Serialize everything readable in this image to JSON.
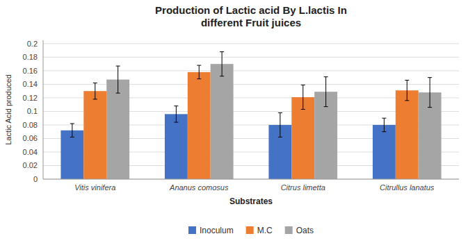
{
  "chart_data": {
    "type": "bar",
    "title": "Production of Lactic acid By L.lactis In\ndifferent Fruit juices",
    "xlabel": "Substrates",
    "ylabel": "Lactic Acid produced",
    "categories": [
      "Vitis vinifera",
      "Ananus comosus",
      "Citrus limetta",
      "Citrullus lanatus"
    ],
    "series": [
      {
        "name": "Inoculum",
        "color": "#4472C4",
        "values": [
          0.072,
          0.096,
          0.08,
          0.08
        ],
        "errors": [
          0.01,
          0.012,
          0.018,
          0.01
        ]
      },
      {
        "name": "M.C",
        "color": "#ED7D31",
        "values": [
          0.13,
          0.158,
          0.121,
          0.131
        ],
        "errors": [
          0.012,
          0.01,
          0.018,
          0.015
        ]
      },
      {
        "name": "Oats",
        "color": "#A5A5A5",
        "values": [
          0.147,
          0.17,
          0.129,
          0.128
        ],
        "errors": [
          0.02,
          0.018,
          0.022,
          0.022
        ]
      }
    ],
    "ylim": [
      0,
      0.205
    ],
    "yticks": [
      0,
      0.02,
      0.04,
      0.06,
      0.08,
      0.1,
      0.12,
      0.14,
      0.16,
      0.18,
      0.2
    ],
    "grid": true,
    "legend": "bottom"
  }
}
